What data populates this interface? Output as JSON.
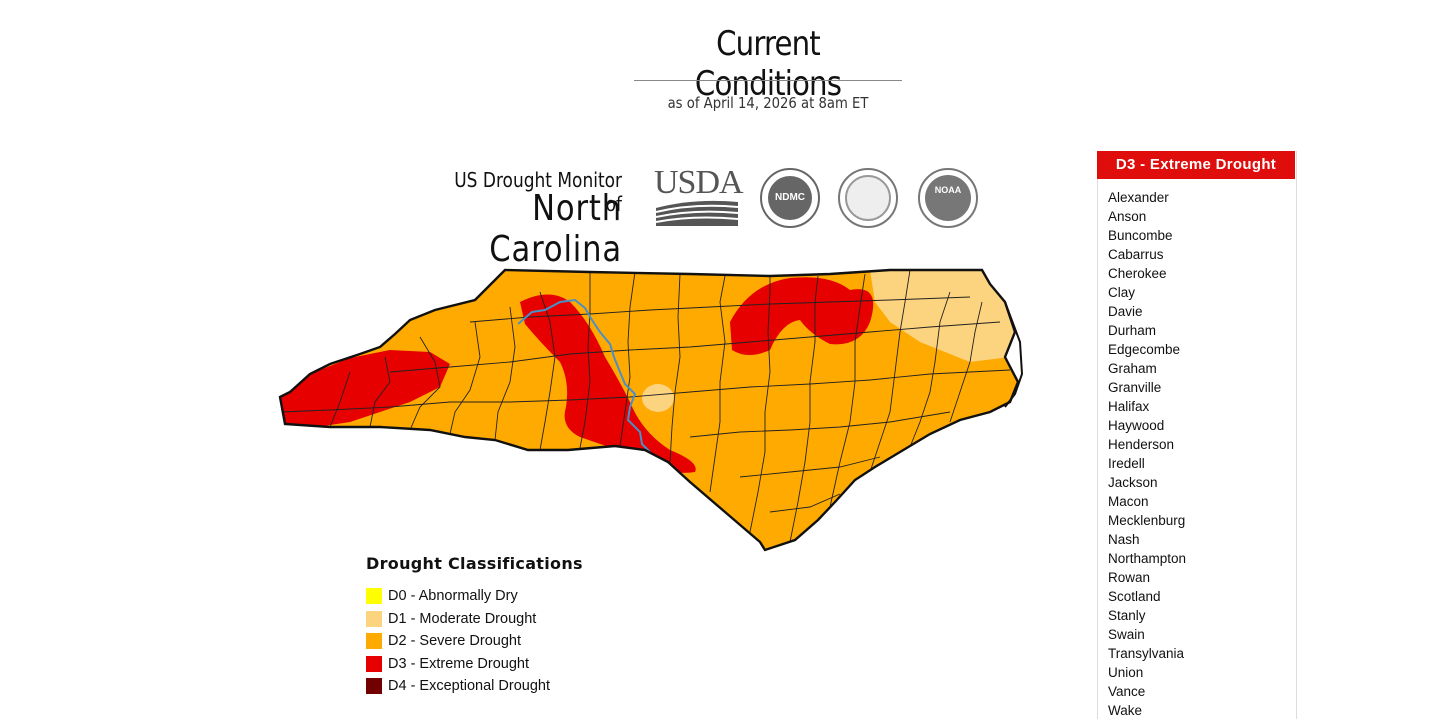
{
  "header": {
    "title": "Current Conditions",
    "subtitle": "as of April 14, 2026 at 8am ET"
  },
  "map_heading": {
    "line1": "US Drought Monitor of",
    "line2": "North Carolina"
  },
  "logos": {
    "usda": "USDA",
    "ndmc": "NDMC",
    "noaa": "NOAA"
  },
  "colors": {
    "d0": "#ffff00",
    "d1": "#fcd37f",
    "d2": "#ffaa00",
    "d3": "#e60000",
    "d4": "#730000",
    "river": "#4a90c8",
    "panel_header": "#e00d0d"
  },
  "legend": {
    "title": "Drought Classifications",
    "items": [
      {
        "label": "D0 - Abnormally Dry",
        "color": "#ffff00"
      },
      {
        "label": "D1 - Moderate Drought",
        "color": "#fcd37f"
      },
      {
        "label": "D2 - Severe Drought",
        "color": "#ffaa00"
      },
      {
        "label": "D3 - Extreme Drought",
        "color": "#e60000"
      },
      {
        "label": "D4 - Exceptional Drought",
        "color": "#730000"
      }
    ]
  },
  "panel": {
    "title": "D3 - Extreme Drought",
    "counties": [
      "Alexander",
      "Anson",
      "Buncombe",
      "Cabarrus",
      "Cherokee",
      "Clay",
      "Davie",
      "Durham",
      "Edgecombe",
      "Graham",
      "Granville",
      "Halifax",
      "Haywood",
      "Henderson",
      "Iredell",
      "Jackson",
      "Macon",
      "Mecklenburg",
      "Nash",
      "Northampton",
      "Rowan",
      "Scotland",
      "Stanly",
      "Swain",
      "Transylvania",
      "Union",
      "Vance",
      "Wake"
    ]
  }
}
